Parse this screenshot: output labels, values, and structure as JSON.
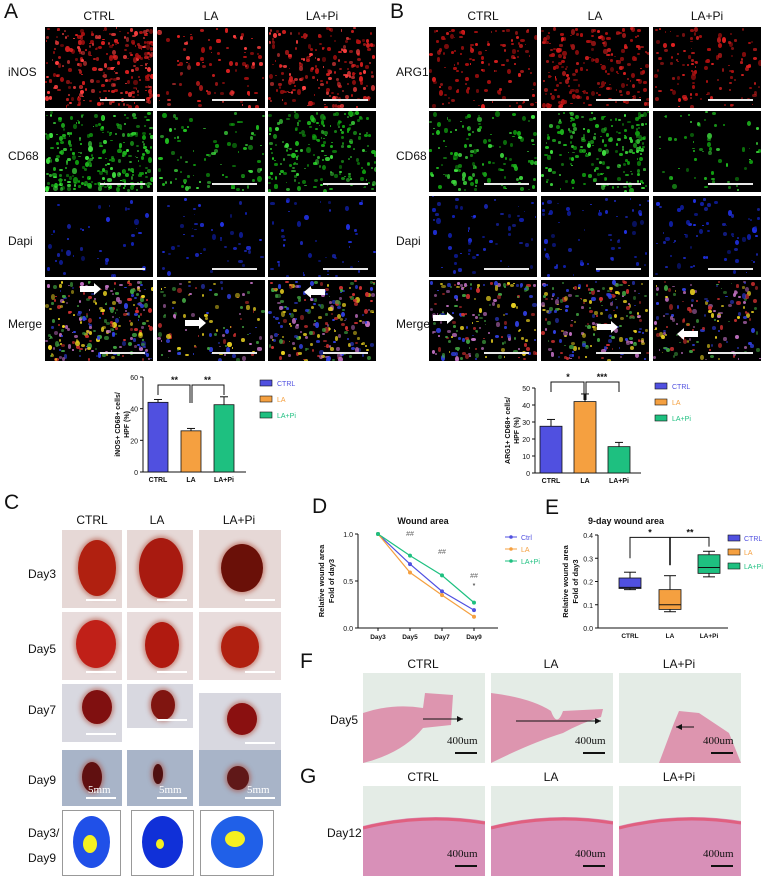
{
  "panels": {
    "A": {
      "label": "A",
      "columns": [
        "CTRL",
        "LA",
        "LA+Pi"
      ],
      "rows": [
        "iNOS",
        "CD68",
        "Dapi",
        "Merge"
      ]
    },
    "B": {
      "label": "B",
      "columns": [
        "CTRL",
        "LA",
        "LA+Pi"
      ],
      "rows": [
        "ARG1",
        "CD68",
        "Dapi",
        "Merge"
      ]
    },
    "C": {
      "label": "C",
      "columns": [
        "CTRL",
        "LA",
        "LA+Pi"
      ],
      "rows": [
        "Day3",
        "Day5",
        "Day7",
        "Day9",
        "Day3/",
        "Day9"
      ],
      "scale_label": "5mm"
    },
    "D": {
      "label": "D"
    },
    "E": {
      "label": "E"
    },
    "F": {
      "label": "F",
      "columns": [
        "CTRL",
        "LA",
        "LA+Pi"
      ],
      "row": "Day5",
      "scale_label": "400um"
    },
    "G": {
      "label": "G",
      "columns": [
        "CTRL",
        "LA",
        "LA+Pi"
      ],
      "row": "Day12",
      "scale_label": "400um"
    }
  },
  "colors": {
    "ctrl": "#5050e0",
    "la": "#f5a040",
    "lapi": "#1ec080"
  },
  "chart_data": [
    {
      "id": "A-bar",
      "type": "bar",
      "title": "",
      "xlabel": "",
      "ylabel": "iNOS+ CD68+ cells/ HPF (%)",
      "categories": [
        "CTRL",
        "LA",
        "LA+Pi"
      ],
      "values": [
        44,
        26,
        42.5
      ],
      "errors": [
        1.8,
        1.5,
        5
      ],
      "ylim": [
        0,
        60
      ],
      "yticks": [
        "0",
        "20",
        "40",
        "60"
      ],
      "significance": [
        {
          "pair": [
            "CTRL",
            "LA"
          ],
          "mark": "**"
        },
        {
          "pair": [
            "LA",
            "LA+Pi"
          ],
          "mark": "**"
        }
      ],
      "legend": [
        "CTRL",
        "LA",
        "LA+Pi"
      ],
      "legend_position": "right"
    },
    {
      "id": "B-bar",
      "type": "bar",
      "title": "",
      "xlabel": "",
      "ylabel": "ARG1+ CD68+ cells/ HPF (%)",
      "categories": [
        "CTRL",
        "LA",
        "LA+Pi"
      ],
      "values": [
        27.5,
        42,
        15.5
      ],
      "errors": [
        4,
        4.5,
        2.5
      ],
      "ylim": [
        0,
        50
      ],
      "yticks": [
        "0",
        "10",
        "20",
        "30",
        "40",
        "50"
      ],
      "significance": [
        {
          "pair": [
            "CTRL",
            "LA"
          ],
          "mark": "*"
        },
        {
          "pair": [
            "LA",
            "LA+Pi"
          ],
          "mark": "***"
        }
      ],
      "legend": [
        "CTRL",
        "LA",
        "LA+Pi"
      ],
      "legend_position": "right"
    },
    {
      "id": "D-line",
      "type": "line",
      "title": "Wound area",
      "xlabel": "",
      "ylabel": "Relative wound area Fold of day3",
      "ylabel_lines": [
        "Relative wound area",
        "Fold of day3"
      ],
      "x": [
        "Day3",
        "Day5",
        "Day7",
        "Day9"
      ],
      "series": [
        {
          "name": "Ctrl",
          "values": [
            1.0,
            0.68,
            0.39,
            0.19
          ]
        },
        {
          "name": "LA",
          "values": [
            1.0,
            0.59,
            0.35,
            0.12
          ]
        },
        {
          "name": "LA+Pi",
          "values": [
            1.0,
            0.77,
            0.56,
            0.27
          ]
        }
      ],
      "ylim": [
        0,
        1.0
      ],
      "yticks": [
        "0.0",
        "0.5",
        "1.0"
      ],
      "annotations": [
        {
          "x": "Day5",
          "text": "##"
        },
        {
          "x": "Day7",
          "text": "##"
        },
        {
          "x": "Day9",
          "text": "##"
        },
        {
          "x": "Day9",
          "text": "*"
        }
      ],
      "legend_position": "right"
    },
    {
      "id": "E-box",
      "type": "box",
      "title": "9-day wound area",
      "xlabel": "",
      "ylabel": "Relative wound area Fold of day3",
      "ylabel_lines": [
        "Relative wound area",
        "Fold of day3"
      ],
      "categories": [
        "CTRL",
        "LA",
        "LA+Pi"
      ],
      "boxes": [
        {
          "name": "CTRL",
          "min": 0.165,
          "q1": 0.17,
          "median": 0.175,
          "q3": 0.215,
          "max": 0.24
        },
        {
          "name": "LA",
          "min": 0.07,
          "q1": 0.08,
          "median": 0.1,
          "q3": 0.165,
          "max": 0.225
        },
        {
          "name": "LA+Pi",
          "min": 0.22,
          "q1": 0.235,
          "median": 0.26,
          "q3": 0.315,
          "max": 0.33
        }
      ],
      "ylim": [
        0,
        0.4
      ],
      "yticks": [
        "0.0",
        "0.1",
        "0.2",
        "0.3",
        "0.4"
      ],
      "significance": [
        {
          "pair": [
            "CTRL",
            "LA"
          ],
          "mark": "*"
        },
        {
          "pair": [
            "LA",
            "LA+Pi"
          ],
          "mark": "**"
        }
      ],
      "legend": [
        "CTRL",
        "LA",
        "LA+Pi"
      ],
      "legend_position": "right"
    }
  ]
}
